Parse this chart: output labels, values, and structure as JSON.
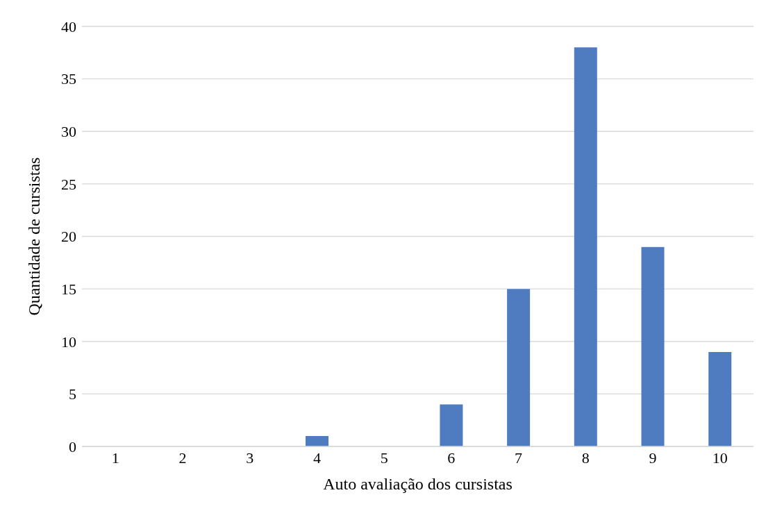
{
  "chart_data": {
    "type": "bar",
    "xlabel": "Auto avaliação dos cursistas",
    "ylabel": "Quantidade de cursistas",
    "categories": [
      "1",
      "2",
      "3",
      "4",
      "5",
      "6",
      "7",
      "8",
      "9",
      "10"
    ],
    "values": [
      0,
      0,
      0,
      1,
      0,
      4,
      15,
      38,
      19,
      9
    ],
    "color": "#4f7bc0",
    "ylim": [
      0,
      40
    ],
    "yticks": [
      0,
      5,
      10,
      15,
      20,
      25,
      30,
      35,
      40
    ],
    "grid": "y"
  }
}
